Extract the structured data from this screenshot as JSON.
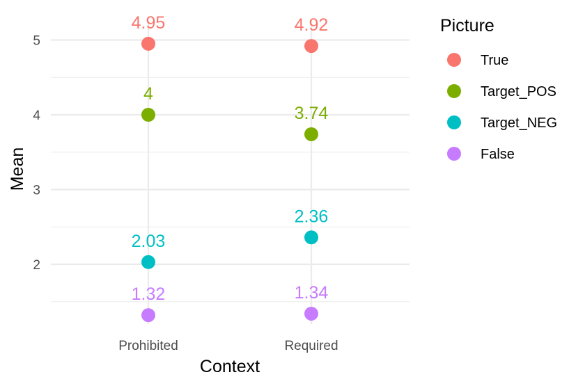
{
  "chart_data": {
    "type": "scatter",
    "categories": [
      "Prohibited",
      "Required"
    ],
    "series": [
      {
        "name": "True",
        "color": "#F8766D",
        "values": [
          4.95,
          4.92
        ],
        "labels": [
          "4.95",
          "4.92"
        ]
      },
      {
        "name": "Target_POS",
        "color": "#7CAE00",
        "values": [
          4.0,
          3.74
        ],
        "labels": [
          "4",
          "3.74"
        ]
      },
      {
        "name": "Target_NEG",
        "color": "#00BFC4",
        "values": [
          2.03,
          2.36
        ],
        "labels": [
          "2.03",
          "2.36"
        ]
      },
      {
        "name": "False",
        "color": "#C77CFF",
        "values": [
          1.32,
          1.34
        ],
        "labels": [
          "1.32",
          "1.34"
        ]
      }
    ],
    "xlabel": "Context",
    "ylabel": "Mean",
    "yticks": [
      "2",
      "3",
      "4",
      "5"
    ],
    "ylim": [
      1.2,
      5.1
    ],
    "legend_title": "Picture",
    "legend_position": "right",
    "grid": true
  }
}
